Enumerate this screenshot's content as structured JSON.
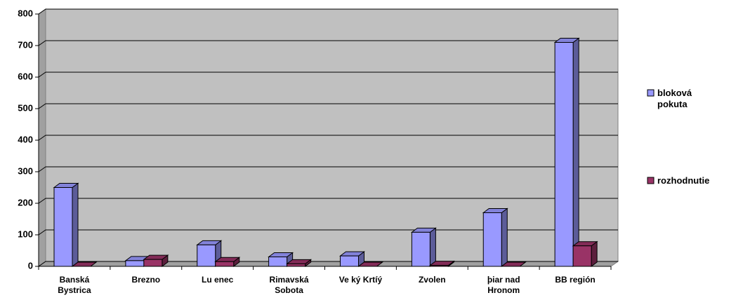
{
  "chart_data": {
    "type": "bar3d",
    "categories": [
      "Banská\nBystrica",
      "Brezno",
      "Lu enec",
      "Rimavská\nSobota",
      "Ve ký Krtíý",
      "Zvolen",
      "þiar nad\nHronom",
      "BB región"
    ],
    "series": [
      {
        "name": "bloková pokuta",
        "color": "#9999ff",
        "values": [
          250,
          18,
          68,
          30,
          33,
          108,
          170,
          710
        ]
      },
      {
        "name": "rozhodnutie",
        "color": "#993366",
        "values": [
          0,
          22,
          15,
          8,
          0,
          3,
          0,
          65
        ]
      }
    ],
    "ylim": [
      0,
      800
    ],
    "yticks": [
      0,
      100,
      200,
      300,
      400,
      500,
      600,
      700,
      800
    ],
    "grid": true,
    "legend": "right"
  }
}
